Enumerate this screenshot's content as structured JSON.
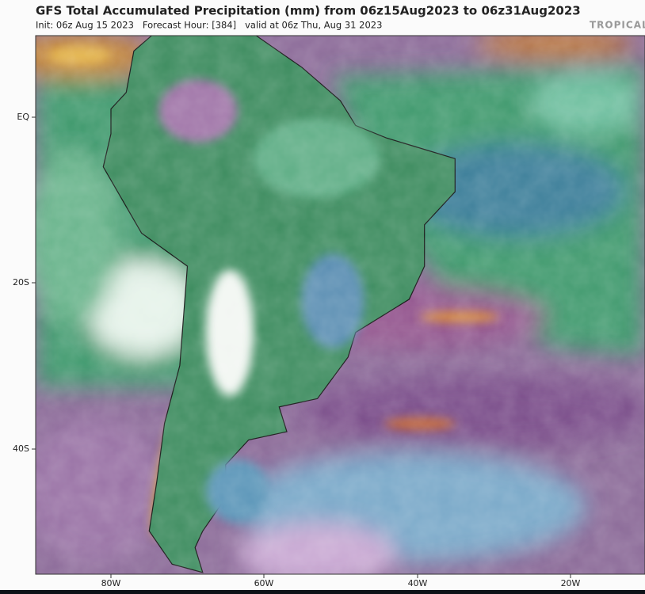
{
  "header": {
    "title": "GFS Total Accumulated Precipitation (mm) from 06z15Aug2023 to 06z31Aug2023",
    "subtitle": "Init: 06z Aug 15 2023   Forecast Hour: [384]   valid at 06z Thu, Aug 31 2023",
    "brand": "TROPICAL"
  },
  "axes": {
    "lat_labels": [
      "EQ",
      "20S",
      "40S"
    ],
    "lon_labels": [
      "80W",
      "60W",
      "40W",
      "20W"
    ]
  }
}
